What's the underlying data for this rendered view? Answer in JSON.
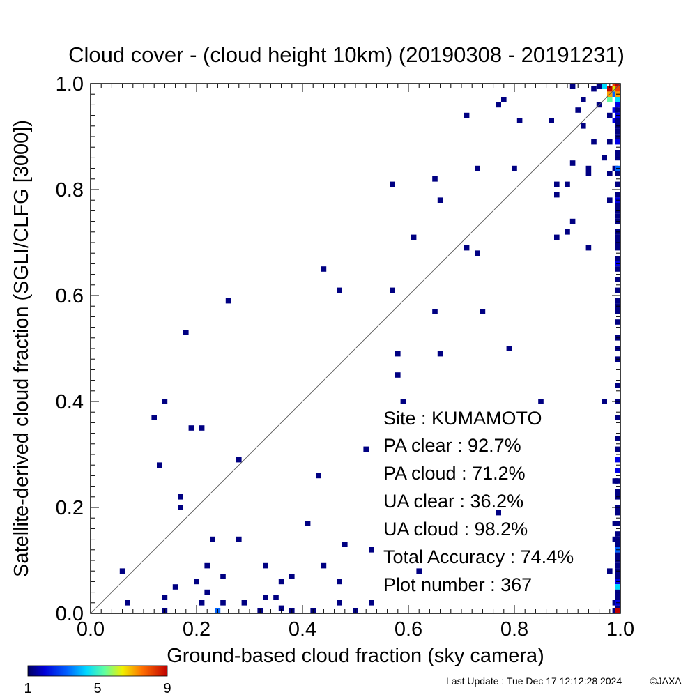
{
  "chart_data": {
    "type": "heatmap",
    "title": "Cloud cover - (cloud height 10km)  (20190308 - 20191231)",
    "xlabel": "Ground-based cloud fraction (sky camera)",
    "ylabel": "Satellite-derived cloud fraction (SGLI/CLFG [3000])",
    "xlim": [
      0.0,
      1.0
    ],
    "ylim": [
      0.0,
      1.0
    ],
    "xticks": [
      "0.0",
      "0.2",
      "0.4",
      "0.6",
      "0.8",
      "1.0"
    ],
    "yticks": [
      "0.0",
      "0.2",
      "0.4",
      "0.6",
      "0.8",
      "1.0"
    ],
    "diagonal": "1:1 line",
    "grid": false,
    "colorbar": {
      "ticks": [
        "1",
        "5",
        "9"
      ],
      "min": 1,
      "max": 9,
      "placement": "bottom-left"
    },
    "cells": [
      [
        0.06,
        0.08,
        1
      ],
      [
        0.07,
        0.02,
        1
      ],
      [
        0.12,
        0.37,
        1
      ],
      [
        0.13,
        0.28,
        1
      ],
      [
        0.14,
        0.4,
        1
      ],
      [
        0.14,
        0.03,
        1
      ],
      [
        0.14,
        0.0,
        1
      ],
      [
        0.16,
        0.05,
        1
      ],
      [
        0.17,
        0.22,
        1
      ],
      [
        0.17,
        0.2,
        1
      ],
      [
        0.18,
        0.53,
        1
      ],
      [
        0.19,
        0.35,
        1
      ],
      [
        0.2,
        0.06,
        1
      ],
      [
        0.21,
        0.35,
        1
      ],
      [
        0.21,
        0.02,
        1
      ],
      [
        0.22,
        0.09,
        1
      ],
      [
        0.22,
        0.04,
        1
      ],
      [
        0.23,
        0.14,
        1
      ],
      [
        0.24,
        0.0,
        3
      ],
      [
        0.25,
        0.07,
        1
      ],
      [
        0.25,
        0.02,
        1
      ],
      [
        0.26,
        0.59,
        1
      ],
      [
        0.28,
        0.29,
        1
      ],
      [
        0.28,
        0.14,
        1
      ],
      [
        0.29,
        0.02,
        1
      ],
      [
        0.32,
        0.0,
        1
      ],
      [
        0.33,
        0.09,
        1
      ],
      [
        0.33,
        0.03,
        1
      ],
      [
        0.35,
        0.03,
        1
      ],
      [
        0.36,
        0.06,
        1
      ],
      [
        0.36,
        0.01,
        1
      ],
      [
        0.38,
        0.07,
        1
      ],
      [
        0.38,
        0.0,
        1
      ],
      [
        0.41,
        0.17,
        1
      ],
      [
        0.42,
        0.0,
        1
      ],
      [
        0.43,
        0.26,
        1
      ],
      [
        0.44,
        0.65,
        1
      ],
      [
        0.44,
        0.09,
        1
      ],
      [
        0.47,
        0.61,
        1
      ],
      [
        0.47,
        0.06,
        1
      ],
      [
        0.47,
        0.02,
        1
      ],
      [
        0.48,
        0.13,
        1
      ],
      [
        0.5,
        0.0,
        1
      ],
      [
        0.52,
        0.31,
        1
      ],
      [
        0.53,
        0.12,
        1
      ],
      [
        0.53,
        0.02,
        1
      ],
      [
        0.57,
        0.81,
        1
      ],
      [
        0.57,
        0.61,
        1
      ],
      [
        0.58,
        0.49,
        1
      ],
      [
        0.58,
        0.45,
        1
      ],
      [
        0.59,
        0.4,
        1
      ],
      [
        0.61,
        0.71,
        1
      ],
      [
        0.62,
        0.08,
        1
      ],
      [
        0.65,
        0.82,
        1
      ],
      [
        0.65,
        0.57,
        1
      ],
      [
        0.66,
        0.78,
        1
      ],
      [
        0.66,
        0.49,
        1
      ],
      [
        0.71,
        0.94,
        1
      ],
      [
        0.71,
        0.69,
        1
      ],
      [
        0.73,
        0.84,
        1
      ],
      [
        0.73,
        0.68,
        1
      ],
      [
        0.74,
        0.57,
        1
      ],
      [
        0.77,
        0.96,
        1
      ],
      [
        0.77,
        0.19,
        1
      ],
      [
        0.78,
        0.97,
        1
      ],
      [
        0.79,
        0.5,
        1
      ],
      [
        0.8,
        0.84,
        1
      ],
      [
        0.81,
        0.93,
        1
      ],
      [
        0.85,
        0.4,
        1
      ],
      [
        0.87,
        0.93,
        1
      ],
      [
        0.88,
        0.81,
        1
      ],
      [
        0.88,
        0.79,
        1
      ],
      [
        0.88,
        0.71,
        1
      ],
      [
        0.9,
        0.81,
        1
      ],
      [
        0.9,
        0.72,
        1
      ],
      [
        0.91,
        0.85,
        1
      ],
      [
        0.91,
        0.74,
        1
      ],
      [
        0.91,
        1.0,
        1
      ],
      [
        0.92,
        0.95,
        1
      ],
      [
        0.93,
        0.92,
        1
      ],
      [
        0.93,
        0.97,
        1
      ],
      [
        0.94,
        0.84,
        1
      ],
      [
        0.94,
        0.83,
        1
      ],
      [
        0.94,
        0.69,
        1
      ],
      [
        0.95,
        0.89,
        1
      ],
      [
        0.95,
        0.99,
        1
      ],
      [
        0.96,
        0.96,
        1
      ],
      [
        0.96,
        1.0,
        1
      ],
      [
        0.97,
        0.86,
        1
      ],
      [
        0.97,
        0.4,
        1
      ],
      [
        0.97,
        1.0,
        4
      ],
      [
        0.98,
        0.89,
        1
      ],
      [
        0.98,
        0.94,
        1
      ],
      [
        0.98,
        0.83,
        1
      ],
      [
        0.98,
        0.78,
        1
      ],
      [
        0.98,
        0.08,
        1
      ],
      [
        0.98,
        0.99,
        9
      ],
      [
        0.98,
        0.98,
        7
      ],
      [
        0.98,
        0.97,
        5
      ],
      [
        0.99,
        1.0,
        8
      ],
      [
        0.99,
        0.99,
        6
      ],
      [
        0.99,
        0.98,
        3
      ],
      [
        0.99,
        0.95,
        2
      ],
      [
        0.99,
        0.93,
        2
      ],
      [
        0.99,
        0.84,
        1
      ],
      [
        0.99,
        0.25,
        1
      ],
      [
        0.99,
        0.17,
        1
      ],
      [
        0.99,
        0.14,
        1
      ],
      [
        0.99,
        0.0,
        1
      ],
      [
        0.99,
        0.02,
        1
      ],
      [
        1.0,
        1.0,
        9
      ],
      [
        1.0,
        0.99,
        8
      ],
      [
        1.0,
        0.98,
        7
      ],
      [
        1.0,
        0.97,
        4
      ],
      [
        1.0,
        0.96,
        2
      ],
      [
        1.0,
        0.95,
        1
      ],
      [
        1.0,
        0.94,
        2
      ],
      [
        1.0,
        0.93,
        1
      ],
      [
        1.0,
        0.92,
        1
      ],
      [
        1.0,
        0.91,
        1
      ],
      [
        1.0,
        0.9,
        1
      ],
      [
        1.0,
        0.89,
        2
      ],
      [
        1.0,
        0.87,
        1
      ],
      [
        1.0,
        0.86,
        1
      ],
      [
        1.0,
        0.84,
        3
      ],
      [
        1.0,
        0.83,
        1
      ],
      [
        1.0,
        0.81,
        1
      ],
      [
        1.0,
        0.79,
        1
      ],
      [
        1.0,
        0.78,
        2
      ],
      [
        1.0,
        0.77,
        1
      ],
      [
        1.0,
        0.76,
        1
      ],
      [
        1.0,
        0.75,
        1
      ],
      [
        1.0,
        0.74,
        1
      ],
      [
        1.0,
        0.72,
        1
      ],
      [
        1.0,
        0.71,
        1
      ],
      [
        1.0,
        0.7,
        1
      ],
      [
        1.0,
        0.69,
        1
      ],
      [
        1.0,
        0.67,
        1
      ],
      [
        1.0,
        0.66,
        2
      ],
      [
        1.0,
        0.65,
        1
      ],
      [
        1.0,
        0.63,
        1
      ],
      [
        1.0,
        0.61,
        1
      ],
      [
        1.0,
        0.59,
        1
      ],
      [
        1.0,
        0.58,
        1
      ],
      [
        1.0,
        0.57,
        1
      ],
      [
        1.0,
        0.55,
        1
      ],
      [
        1.0,
        0.52,
        1
      ],
      [
        1.0,
        0.5,
        1
      ],
      [
        1.0,
        0.48,
        1
      ],
      [
        1.0,
        0.43,
        1
      ],
      [
        1.0,
        0.4,
        1
      ],
      [
        1.0,
        0.37,
        1
      ],
      [
        1.0,
        0.33,
        1
      ],
      [
        1.0,
        0.31,
        1
      ],
      [
        1.0,
        0.29,
        2
      ],
      [
        1.0,
        0.27,
        2
      ],
      [
        1.0,
        0.25,
        1
      ],
      [
        1.0,
        0.23,
        1
      ],
      [
        1.0,
        0.22,
        1
      ],
      [
        1.0,
        0.2,
        1
      ],
      [
        1.0,
        0.19,
        1
      ],
      [
        1.0,
        0.17,
        1
      ],
      [
        1.0,
        0.15,
        1
      ],
      [
        1.0,
        0.14,
        1
      ],
      [
        1.0,
        0.13,
        1
      ],
      [
        1.0,
        0.12,
        3
      ],
      [
        1.0,
        0.11,
        1
      ],
      [
        1.0,
        0.1,
        1
      ],
      [
        1.0,
        0.09,
        1
      ],
      [
        1.0,
        0.08,
        1
      ],
      [
        1.0,
        0.07,
        1
      ],
      [
        1.0,
        0.06,
        2
      ],
      [
        1.0,
        0.05,
        4
      ],
      [
        1.0,
        0.04,
        1
      ],
      [
        1.0,
        0.03,
        1
      ],
      [
        1.0,
        0.02,
        2
      ],
      [
        1.0,
        0.01,
        1
      ],
      [
        1.0,
        0.0,
        9
      ]
    ],
    "annotations": {
      "site": "Site : KUMAMOTO",
      "pa_clear": "PA clear :  92.7%",
      "pa_cloud": "PA cloud :  71.2%",
      "ua_clear": "UA clear :  36.2%",
      "ua_cloud": "UA cloud :  98.2%",
      "total_accuracy": "Total Accuracy :  74.4%",
      "plot_number": "Plot number :       367"
    }
  },
  "footer": {
    "last_update": "Last Update : Tue Dec 17 12:12:28 2024",
    "copyright": "©JAXA"
  }
}
